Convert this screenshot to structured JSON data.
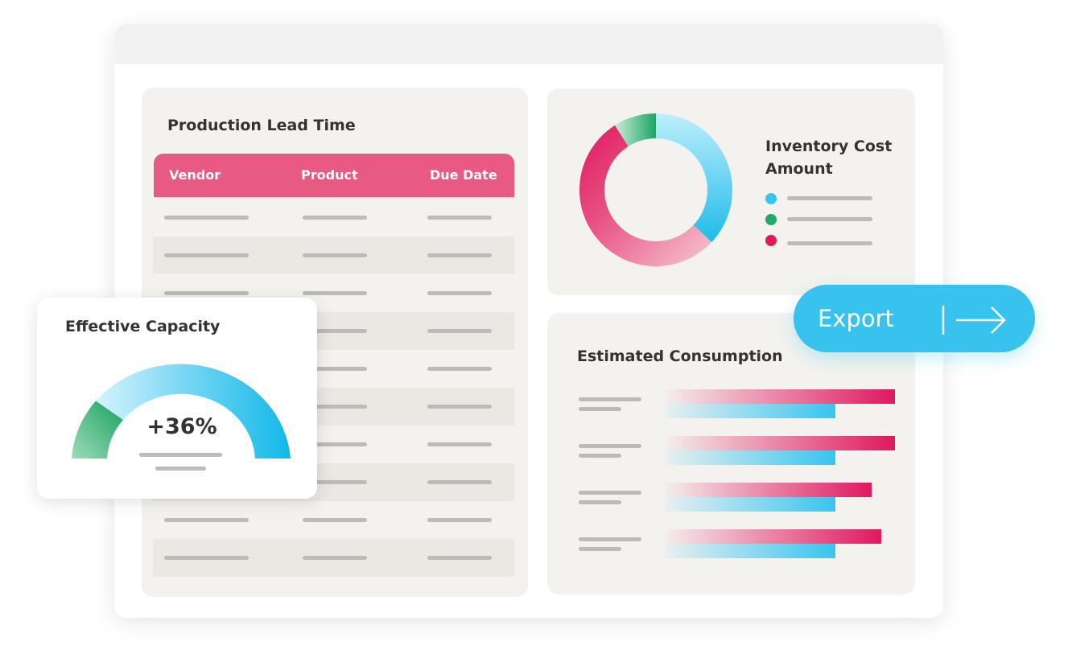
{
  "production": {
    "title": "Production Lead Time",
    "columns": [
      "Vendor",
      "Product",
      "Due Date"
    ]
  },
  "inventory": {
    "title_line1": "Inventory Cost",
    "title_line2": "Amount",
    "segments": [
      {
        "color": "#38c4ef",
        "share": 0.37
      },
      {
        "color": "#e0185f",
        "share": 0.54
      },
      {
        "color": "#22a86a",
        "share": 0.09
      }
    ]
  },
  "capacity": {
    "title": "Effective Capacity",
    "value": "+36%"
  },
  "consumption": {
    "title": "Estimated Consumption",
    "bars": [
      {
        "pink": 1.0,
        "blue": 0.74
      },
      {
        "pink": 1.0,
        "blue": 0.74
      },
      {
        "pink": 0.9,
        "blue": 0.74
      },
      {
        "pink": 0.94,
        "blue": 0.74
      }
    ]
  },
  "export": {
    "label": "Export"
  },
  "colors": {
    "accent_pink": "#e85a82",
    "accent_blue": "#37c3ee",
    "accent_green": "#22a86a",
    "accent_magenta": "#e0185f"
  }
}
